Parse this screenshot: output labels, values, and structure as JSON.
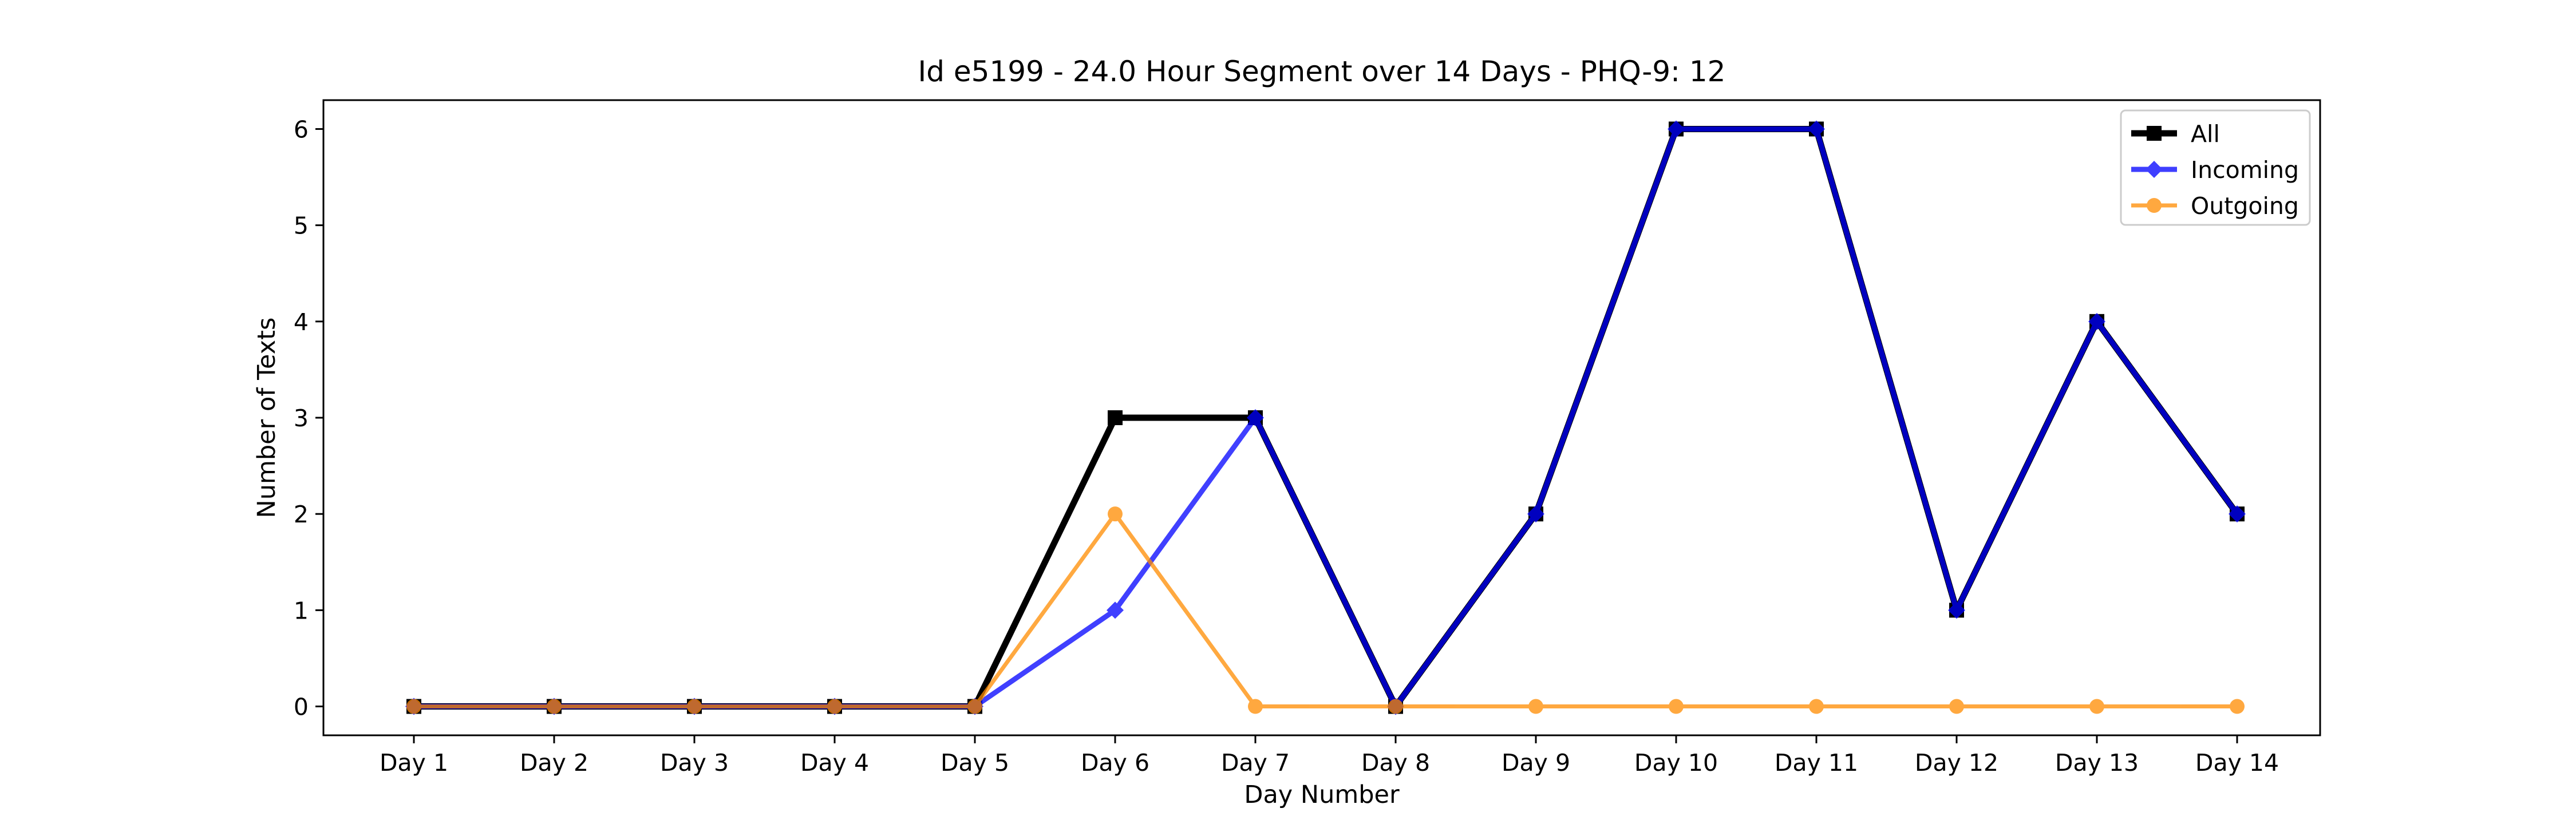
{
  "chart_data": {
    "type": "line",
    "title": "Id e5199 - 24.0 Hour Segment over 14 Days - PHQ-9: 12",
    "xlabel": "Day Number",
    "ylabel": "Number of Texts",
    "categories": [
      "Day 1",
      "Day 2",
      "Day 3",
      "Day 4",
      "Day 5",
      "Day 6",
      "Day 7",
      "Day 8",
      "Day 9",
      "Day 10",
      "Day 11",
      "Day 12",
      "Day 13",
      "Day 14"
    ],
    "ylim": [
      -0.3,
      6.3
    ],
    "yticks": [
      0,
      1,
      2,
      3,
      4,
      5,
      6
    ],
    "grid": false,
    "legend_position": "top-right",
    "series": [
      {
        "name": "All",
        "color": "#000000",
        "marker": "square",
        "values": [
          0,
          0,
          0,
          0,
          0,
          3,
          3,
          0,
          2,
          6,
          6,
          1,
          4,
          2
        ]
      },
      {
        "name": "Incoming",
        "color": "#0000ff",
        "marker": "diamond",
        "values": [
          0,
          0,
          0,
          0,
          0,
          1,
          3,
          0,
          2,
          6,
          6,
          1,
          4,
          2
        ]
      },
      {
        "name": "Outgoing",
        "color": "#ff8c00",
        "marker": "circle",
        "values": [
          0,
          0,
          0,
          0,
          0,
          2,
          0,
          0,
          0,
          0,
          0,
          0,
          0,
          0
        ]
      }
    ]
  }
}
